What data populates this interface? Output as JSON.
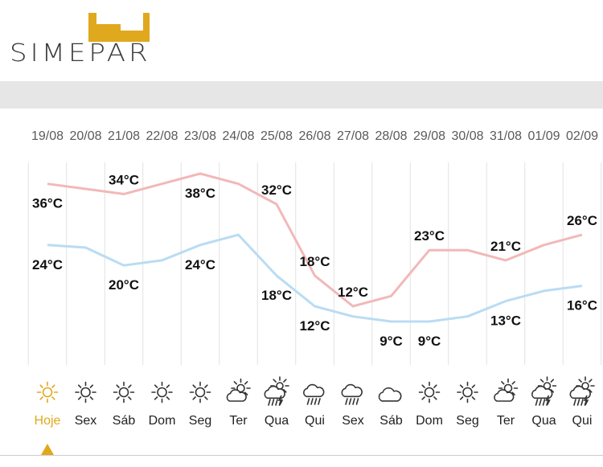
{
  "brand": {
    "name": "SIMEPAR",
    "accent_color": "#e0a81c"
  },
  "colors": {
    "max_line": "#f2b8b8",
    "min_line": "#b9dcf3",
    "today": "#e0a81c",
    "grid": "#e2e2e2"
  },
  "chart_data": {
    "type": "line",
    "x": [
      "19/08",
      "20/08",
      "21/08",
      "22/08",
      "23/08",
      "24/08",
      "25/08",
      "26/08",
      "27/08",
      "28/08",
      "29/08",
      "30/08",
      "31/08",
      "01/09",
      "02/09"
    ],
    "day_labels": [
      "Hoje",
      "Sex",
      "Sáb",
      "Dom",
      "Seg",
      "Ter",
      "Qua",
      "Qui",
      "Sex",
      "Sáb",
      "Dom",
      "Seg",
      "Ter",
      "Qua",
      "Qui"
    ],
    "icons": [
      "sun-icon",
      "sun-icon",
      "sun-icon",
      "sun-icon",
      "sun-icon",
      "partly-cloudy-icon",
      "rain-thunder-icon",
      "rain-icon",
      "rain-icon",
      "cloud-icon",
      "sun-icon",
      "sun-icon",
      "partly-cloudy-icon",
      "rain-thunder-icon",
      "rain-thunder-icon"
    ],
    "series": [
      {
        "key": "max",
        "values": [
          36,
          35,
          34,
          36,
          38,
          36,
          32,
          18,
          12,
          14,
          23,
          23,
          21,
          24,
          26
        ]
      },
      {
        "key": "min",
        "values": [
          24,
          23.5,
          20,
          21,
          24,
          26,
          18,
          12,
          10,
          9,
          9,
          10,
          13,
          15,
          16
        ]
      }
    ],
    "labels": {
      "max": [
        {
          "i": 0,
          "text": "36°C"
        },
        {
          "i": 2,
          "text": "34°C"
        },
        {
          "i": 4,
          "text": "38°C"
        },
        {
          "i": 6,
          "text": "32°C"
        },
        {
          "i": 7,
          "text": "18°C"
        },
        {
          "i": 8,
          "text": "12°C"
        },
        {
          "i": 10,
          "text": "23°C"
        },
        {
          "i": 12,
          "text": "21°C"
        },
        {
          "i": 14,
          "text": "26°C"
        }
      ],
      "min": [
        {
          "i": 0,
          "text": "24°C"
        },
        {
          "i": 2,
          "text": "20°C"
        },
        {
          "i": 4,
          "text": "24°C"
        },
        {
          "i": 6,
          "text": "18°C"
        },
        {
          "i": 7,
          "text": "12°C"
        },
        {
          "i": 9,
          "text": "9°C"
        },
        {
          "i": 10,
          "text": "9°C"
        },
        {
          "i": 12,
          "text": "13°C"
        },
        {
          "i": 14,
          "text": "16°C"
        }
      ]
    },
    "grid": true,
    "selected_index": 0
  }
}
